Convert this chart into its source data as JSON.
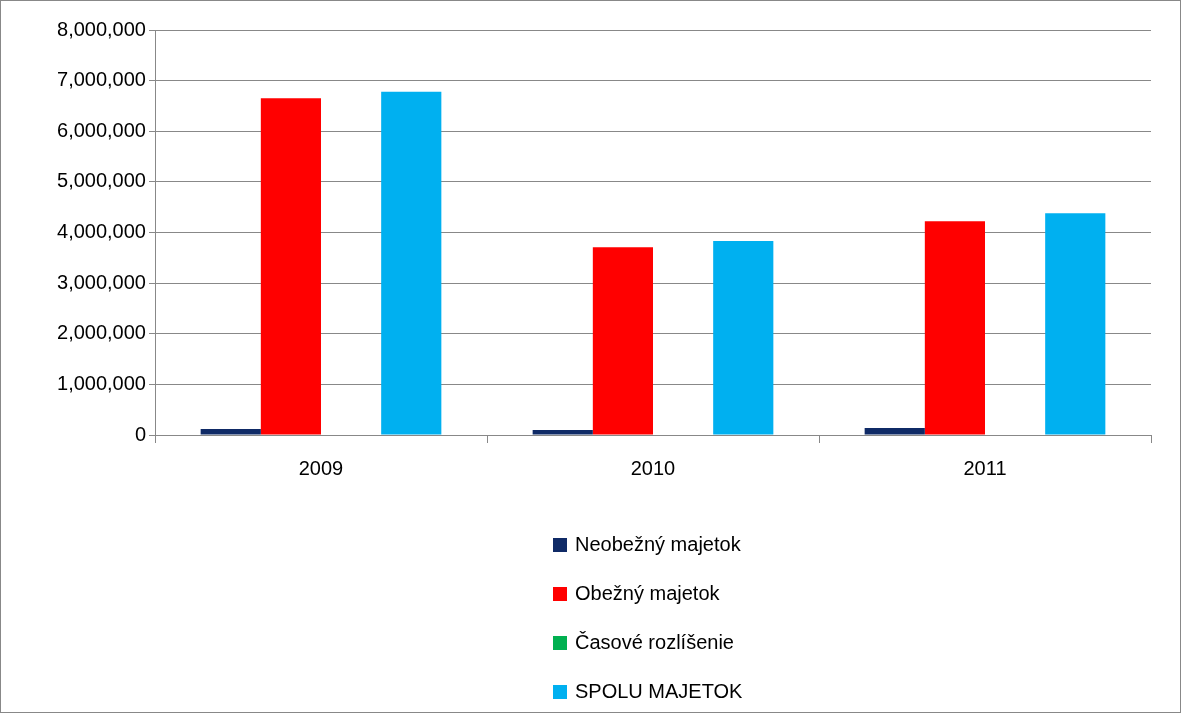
{
  "chart_data": {
    "type": "bar",
    "categories": [
      "2009",
      "2010",
      "2011"
    ],
    "series": [
      {
        "name": "Neobežný majetok",
        "color": "#0f2a66",
        "values": [
          120000,
          100000,
          140000
        ]
      },
      {
        "name": "Obežný majetok",
        "color": "#ff0000",
        "values": [
          6650000,
          3710000,
          4220000
        ]
      },
      {
        "name": "Časové rozlíšenie",
        "color": "#00b050",
        "values": [
          0,
          0,
          0
        ]
      },
      {
        "name": "SPOLU MAJETOK",
        "color": "#00b0f0",
        "values": [
          6780000,
          3830000,
          4380000
        ]
      }
    ],
    "ylim": [
      0,
      8000000
    ],
    "yticks": [
      0,
      {
        "value": 1000000,
        "label": "1,000,000"
      },
      {
        "value": 2000000,
        "label": "2,000,000"
      },
      {
        "value": 3000000,
        "label": "3,000,000"
      },
      {
        "value": 4000000,
        "label": "4,000,000"
      },
      {
        "value": 5000000,
        "label": "5,000,000"
      },
      {
        "value": 6000000,
        "label": "6,000,000"
      },
      {
        "value": 7000000,
        "label": "7,000,000"
      },
      {
        "value": 8000000,
        "label": "8,000,000"
      }
    ],
    "grid": "y",
    "legend": "bottom"
  }
}
